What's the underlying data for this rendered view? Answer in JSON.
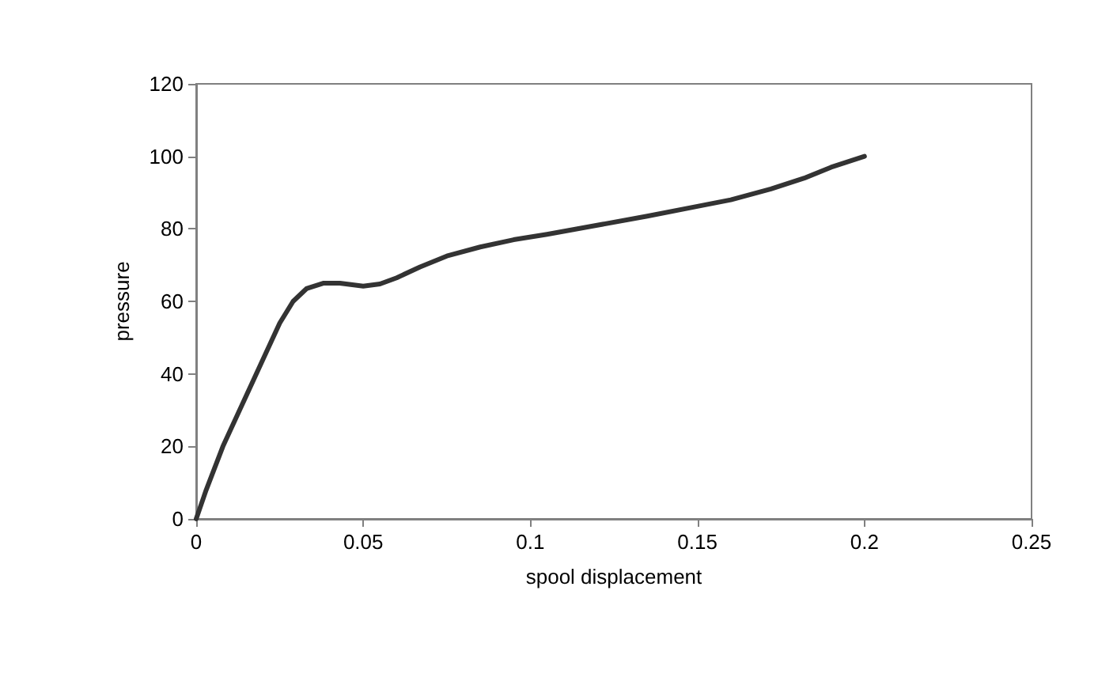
{
  "chart_data": {
    "type": "line",
    "xlabel": "spool displacement",
    "ylabel": "pressure",
    "x": [
      0,
      0.003,
      0.008,
      0.014,
      0.02,
      0.025,
      0.029,
      0.033,
      0.038,
      0.043,
      0.05,
      0.055,
      0.06,
      0.067,
      0.075,
      0.085,
      0.095,
      0.105,
      0.12,
      0.135,
      0.15,
      0.16,
      0.172,
      0.182,
      0.19,
      0.2
    ],
    "series": [
      {
        "color": "#333333",
        "values": [
          0,
          8,
          20,
          32,
          44,
          54,
          60,
          63.5,
          65,
          65,
          64.2,
          64.8,
          66.5,
          69.5,
          72.5,
          75,
          77,
          78.5,
          81,
          83.5,
          86.2,
          88,
          91,
          94,
          97,
          100
        ]
      }
    ],
    "xlim": [
      0,
      0.25
    ],
    "xticks": [
      0,
      0.05,
      0.1,
      0.15,
      0.2,
      0.25
    ],
    "ylim": [
      0,
      120
    ],
    "yticks": [
      0,
      20,
      40,
      60,
      80,
      100,
      120
    ],
    "grid": false,
    "marker": "none",
    "line_style": "solid"
  }
}
